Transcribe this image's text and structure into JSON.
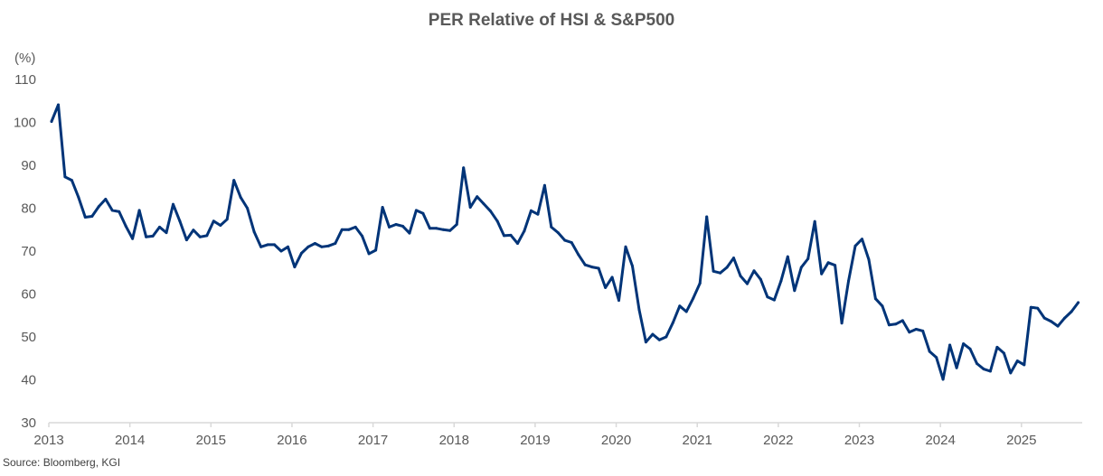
{
  "chart_data": {
    "type": "line",
    "title": "PER Relative of HSI & S&P500",
    "ylabel": "(%)",
    "xlabel": "",
    "ylim": [
      30,
      110
    ],
    "yticks": [
      30,
      40,
      50,
      60,
      70,
      80,
      90,
      100,
      110
    ],
    "xlim": [
      "2013-01",
      "2025-09"
    ],
    "xticks": [
      "2013",
      "2014",
      "2015",
      "2016",
      "2017",
      "2018",
      "2019",
      "2020",
      "2021",
      "2022",
      "2023",
      "2024",
      "2025"
    ],
    "grid": false,
    "legend": "none",
    "source": "Source: Bloomberg, KGI",
    "line_color": "#003478",
    "series": [
      {
        "name": "PER Relative of HSI & S&P500",
        "start": "2013-01",
        "frequency": "monthly",
        "values": [
          100.2,
          104.1,
          87.3,
          86.5,
          82.5,
          77.9,
          78.1,
          80.4,
          82.1,
          79.5,
          79.2,
          75.8,
          72.9,
          79.5,
          73.3,
          73.5,
          75.6,
          74.3,
          80.9,
          77.0,
          72.6,
          74.9,
          73.3,
          73.6,
          77.0,
          76.0,
          77.4,
          86.5,
          82.5,
          80.0,
          74.5,
          71.0,
          71.5,
          71.5,
          70.0,
          71.0,
          66.3,
          69.5,
          71.0,
          71.8,
          71.0,
          71.2,
          71.8,
          75.0,
          75.0,
          75.6,
          73.5,
          69.4,
          70.2,
          80.2,
          75.6,
          76.2,
          75.8,
          74.2,
          79.5,
          78.8,
          75.3,
          75.3,
          75.0,
          74.8,
          76.2,
          89.4,
          80.2,
          82.7,
          81.0,
          79.3,
          77.0,
          73.6,
          73.7,
          71.8,
          74.7,
          79.4,
          78.6,
          85.3,
          75.6,
          74.3,
          72.5,
          72.0,
          69.2,
          66.8,
          66.3,
          66.0,
          61.5,
          63.9,
          58.5,
          71.0,
          66.5,
          56.3,
          48.8,
          50.6,
          49.3,
          50.0,
          53.3,
          57.2,
          55.9,
          59.0,
          62.5,
          78.0,
          65.3,
          64.9,
          66.2,
          68.4,
          64.2,
          62.4,
          65.4,
          63.4,
          59.3,
          58.6,
          63.0,
          68.7,
          60.8,
          66.2,
          68.2,
          76.9,
          64.7,
          67.3,
          66.7,
          53.2,
          63.0,
          71.2,
          72.8,
          68.0,
          58.9,
          57.2,
          52.8,
          53.0,
          53.8,
          51.1,
          51.8,
          51.4,
          46.6,
          45.2,
          40.1,
          48.1,
          42.8,
          48.4,
          47.2,
          43.8,
          42.5,
          42.0,
          47.6,
          46.2,
          41.6,
          44.4,
          43.5,
          56.9,
          56.7,
          54.4,
          53.6,
          52.5,
          54.4,
          55.9,
          58.0
        ]
      }
    ]
  }
}
